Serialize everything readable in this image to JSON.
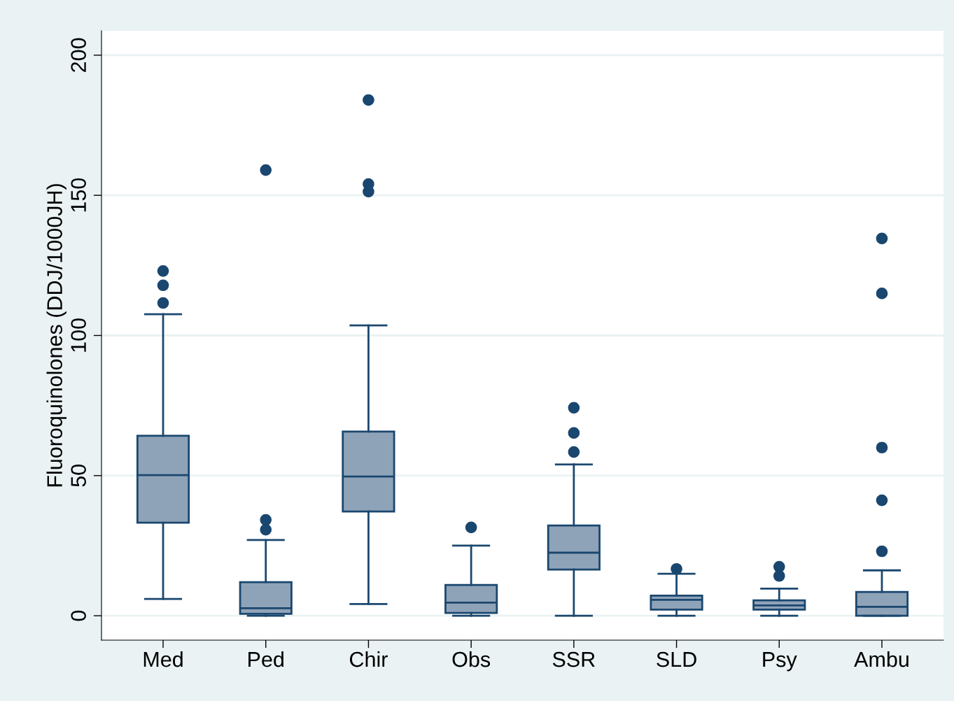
{
  "chart_data": {
    "type": "box",
    "ylabel": "Fluoroquinolones (DDJ/1000JH)",
    "categories": [
      "Med",
      "Ped",
      "Chir",
      "Obs",
      "SSR",
      "SLD",
      "Psy",
      "Ambu"
    ],
    "series": [
      {
        "color": "#1a476f",
        "boxes": [
          {
            "low": 6,
            "q1": 33.2,
            "median": 50.2,
            "q3": 64.2,
            "high": 107.6,
            "outliers": [
              123,
              117.9,
              111.6
            ]
          },
          {
            "low": 0,
            "q1": 0.7,
            "median": 2.7,
            "q3": 12,
            "high": 27,
            "outliers": [
              159,
              34.2,
              30.7
            ]
          },
          {
            "low": 4.2,
            "q1": 37.2,
            "median": 49.7,
            "q3": 65.7,
            "high": 103.6,
            "outliers": [
              184,
              154,
              151.3
            ]
          },
          {
            "low": 0,
            "q1": 1,
            "median": 4.7,
            "q3": 11,
            "high": 25,
            "outliers": [
              31.5
            ]
          },
          {
            "low": 0,
            "q1": 16.5,
            "median": 22.5,
            "q3": 32.2,
            "high": 54,
            "outliers": [
              74.2,
              65.2,
              58.4
            ]
          },
          {
            "low": 0,
            "q1": 2.2,
            "median": 5.7,
            "q3": 7.2,
            "high": 15,
            "outliers": [
              16.7
            ]
          },
          {
            "low": 0,
            "q1": 2.2,
            "median": 3.7,
            "q3": 5.5,
            "high": 9.7,
            "outliers": [
              17.5,
              14.2
            ]
          },
          {
            "low": 0,
            "q1": 0,
            "median": 3.2,
            "q3": 8.5,
            "high": 16.2,
            "outliers": [
              134.6,
              115,
              60,
              41.2,
              23
            ]
          }
        ]
      }
    ],
    "color": "#8fa3b8",
    "ylim": [
      -8.7,
      208.7
    ],
    "yticks": [
      0,
      50,
      100,
      150,
      200
    ],
    "grid": "y"
  }
}
